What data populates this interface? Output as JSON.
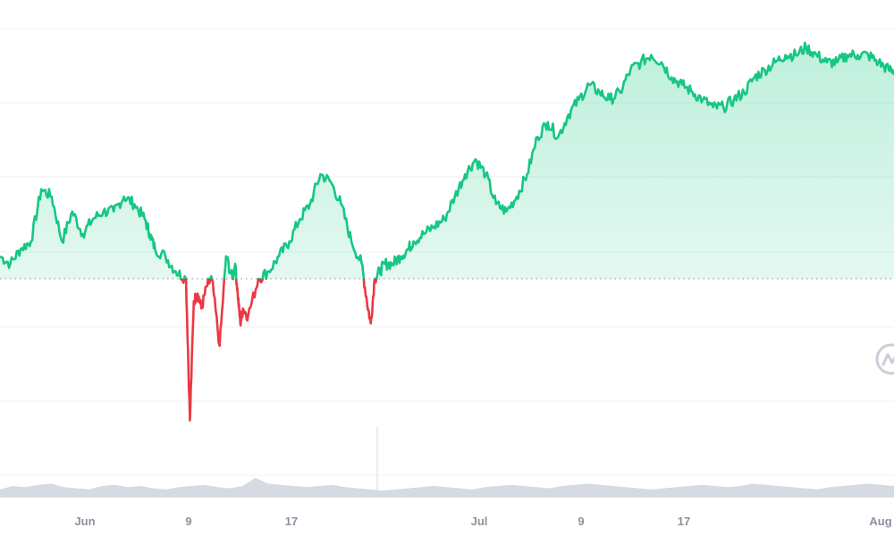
{
  "chart_data": {
    "type": "line",
    "x_tick_labels": [
      "Jun",
      "9",
      "17",
      "Jul",
      "9",
      "17",
      "Aug"
    ],
    "y_axis_labels_visible": false,
    "baseline": 0,
    "ylim": [
      -2.4,
      3.6
    ],
    "grid": "horizontal",
    "colors": {
      "above_baseline": "#16c784",
      "below_baseline": "#ea3943",
      "area_fill_top": "#16c784",
      "baseline_dots": "#9aa3b1",
      "grid": "#eef1f5",
      "volume": "#d6dae2",
      "tick_text": "#8b919d"
    },
    "watermark_icon": "coinmarketcap-logo-icon",
    "series": [
      {
        "x": [
          0,
          0.8,
          1.6,
          2.4,
          3.2,
          4.0,
          4.8,
          5.6,
          6.4,
          7.2,
          8.0,
          8.8,
          9.6,
          10.4,
          11.2,
          11.6,
          12.0,
          12.8,
          13.6,
          14.4,
          14.7,
          15.0,
          15.3,
          15.6,
          16.0,
          16.4,
          17.0,
          17.5,
          18.0,
          18.2,
          18.4,
          18.6,
          18.8,
          19.2,
          20.0,
          20.8,
          21.6,
          22.4,
          23.2,
          24.0,
          24.8,
          25.6,
          26.4,
          27.2,
          28.0,
          28.4,
          28.7,
          29.0,
          29.4,
          29.8,
          30.4,
          31.0,
          31.6,
          32.0,
          32.8,
          33.6,
          34.4,
          35.2,
          36.0,
          36.8,
          37.6,
          38.4,
          39.2,
          40.0,
          40.8,
          41.6,
          42.4,
          43.2,
          44.0,
          44.8,
          45.6,
          46.4,
          47.2,
          48.0,
          48.8,
          49.6,
          50.4,
          51.2,
          52.0,
          52.8,
          53.6,
          54.4,
          55.2,
          56.0,
          56.8,
          57.6,
          58.4,
          59.2,
          60.0,
          60.8,
          61.6,
          62.4,
          63.2,
          64.0,
          64.8,
          65.6,
          66.4,
          67.2,
          68.0,
          68.8,
          69.2
        ],
        "y": [
          0.3,
          0.2,
          0.4,
          0.5,
          1.2,
          1.1,
          0.5,
          0.9,
          0.6,
          0.8,
          0.9,
          0.9,
          1.1,
          1.0,
          0.8,
          0.6,
          0.4,
          0.3,
          0.1,
          0.0,
          -1.9,
          -0.3,
          -0.2,
          -0.4,
          -0.1,
          0.0,
          -0.9,
          0.3,
          0.0,
          0.2,
          -0.2,
          -0.6,
          -0.4,
          -0.5,
          0.0,
          0.1,
          0.3,
          0.5,
          0.8,
          1.0,
          1.4,
          1.3,
          1.0,
          0.5,
          0.2,
          -0.3,
          -0.6,
          0.0,
          0.1,
          0.2,
          0.2,
          0.3,
          0.4,
          0.5,
          0.6,
          0.7,
          0.8,
          1.1,
          1.4,
          1.6,
          1.4,
          1.0,
          0.9,
          1.1,
          1.4,
          1.9,
          2.1,
          1.9,
          2.2,
          2.4,
          2.6,
          2.5,
          2.4,
          2.5,
          2.8,
          2.9,
          3.0,
          2.9,
          2.7,
          2.6,
          2.5,
          2.4,
          2.3,
          2.3,
          2.4,
          2.5,
          2.7,
          2.8,
          2.9,
          3.0,
          3.0,
          3.1,
          3.0,
          2.9,
          2.9,
          3.0,
          3.0,
          3.0,
          2.9,
          2.8,
          2.8
        ]
      }
    ],
    "volume": [
      0.35,
      0.5,
      0.45,
      0.55,
      0.6,
      0.45,
      0.4,
      0.35,
      0.5,
      0.55,
      0.45,
      0.5,
      0.4,
      0.35,
      0.45,
      0.5,
      0.55,
      0.45,
      0.4,
      0.5,
      0.85,
      0.6,
      0.55,
      0.5,
      0.45,
      0.5,
      0.55,
      0.45,
      0.4,
      0.35,
      0.3,
      0.35,
      0.4,
      0.45,
      0.5,
      0.45,
      0.4,
      0.35,
      0.45,
      0.5,
      0.55,
      0.5,
      0.45,
      0.4,
      0.5,
      0.55,
      0.6,
      0.55,
      0.5,
      0.45,
      0.4,
      0.35,
      0.4,
      0.45,
      0.5,
      0.55,
      0.5,
      0.45,
      0.5,
      0.6,
      0.55,
      0.5,
      0.45,
      0.4,
      0.35,
      0.45,
      0.5,
      0.55,
      0.6,
      0.55,
      0.5
    ]
  }
}
